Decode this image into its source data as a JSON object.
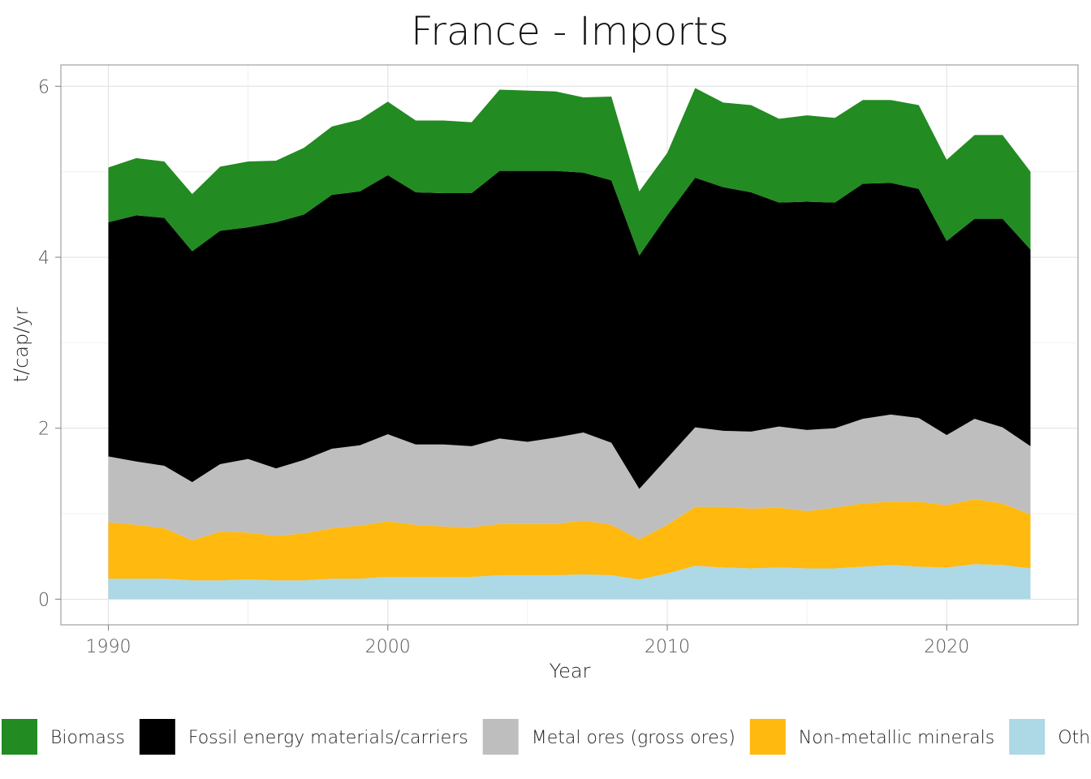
{
  "chart_data": {
    "type": "area",
    "stacked": true,
    "title": "France  -  Imports",
    "xlabel": "Year",
    "ylabel": "t/cap/yr",
    "xlim": [
      1988.3,
      2024.7
    ],
    "ylim": [
      -0.3,
      6.25
    ],
    "xticks": [
      1990,
      2000,
      2010,
      2020
    ],
    "yticks": [
      0,
      2,
      4,
      6
    ],
    "grid": true,
    "legend_position": "bottom",
    "x": [
      1990,
      1991,
      1992,
      1993,
      1994,
      1995,
      1996,
      1997,
      1998,
      1999,
      2000,
      2001,
      2002,
      2003,
      2004,
      2005,
      2006,
      2007,
      2008,
      2009,
      2010,
      2011,
      2012,
      2013,
      2014,
      2015,
      2016,
      2017,
      2018,
      2019,
      2020,
      2021,
      2022,
      2023
    ],
    "series": [
      {
        "name": "Other products",
        "color": "#add8e6",
        "values": [
          0.24,
          0.24,
          0.24,
          0.22,
          0.22,
          0.23,
          0.22,
          0.22,
          0.24,
          0.24,
          0.26,
          0.26,
          0.26,
          0.26,
          0.28,
          0.28,
          0.28,
          0.29,
          0.28,
          0.23,
          0.3,
          0.39,
          0.37,
          0.36,
          0.37,
          0.36,
          0.36,
          0.38,
          0.4,
          0.38,
          0.37,
          0.41,
          0.4,
          0.36
        ]
      },
      {
        "name": "Non-metallic minerals",
        "color": "#ffb90f",
        "values": [
          0.66,
          0.63,
          0.59,
          0.47,
          0.57,
          0.55,
          0.52,
          0.55,
          0.59,
          0.62,
          0.65,
          0.61,
          0.59,
          0.58,
          0.6,
          0.6,
          0.6,
          0.63,
          0.59,
          0.47,
          0.57,
          0.69,
          0.71,
          0.7,
          0.7,
          0.67,
          0.71,
          0.74,
          0.74,
          0.76,
          0.73,
          0.76,
          0.72,
          0.63
        ]
      },
      {
        "name": "Metal ores (gross ores)",
        "color": "#bebebe",
        "values": [
          0.77,
          0.74,
          0.73,
          0.68,
          0.79,
          0.86,
          0.79,
          0.86,
          0.93,
          0.94,
          1.02,
          0.94,
          0.96,
          0.95,
          1.0,
          0.96,
          1.01,
          1.03,
          0.96,
          0.59,
          0.78,
          0.93,
          0.89,
          0.9,
          0.95,
          0.95,
          0.93,
          0.99,
          1.02,
          0.98,
          0.82,
          0.94,
          0.89,
          0.8
        ]
      },
      {
        "name": "Fossil energy materials/carriers",
        "color": "#000000",
        "values": [
          2.74,
          2.88,
          2.9,
          2.7,
          2.73,
          2.71,
          2.88,
          2.87,
          2.97,
          2.97,
          3.03,
          2.95,
          2.94,
          2.96,
          3.13,
          3.17,
          3.12,
          3.04,
          3.07,
          2.73,
          2.84,
          2.92,
          2.85,
          2.8,
          2.62,
          2.67,
          2.64,
          2.75,
          2.71,
          2.68,
          2.27,
          2.34,
          2.44,
          2.3
        ]
      },
      {
        "name": "Biomass",
        "color": "#228b22",
        "values": [
          0.64,
          0.67,
          0.66,
          0.67,
          0.75,
          0.77,
          0.72,
          0.78,
          0.8,
          0.84,
          0.86,
          0.84,
          0.85,
          0.83,
          0.95,
          0.94,
          0.93,
          0.88,
          0.98,
          0.75,
          0.73,
          1.05,
          0.99,
          1.02,
          0.98,
          1.01,
          0.99,
          0.98,
          0.97,
          0.98,
          0.95,
          0.98,
          0.98,
          0.91
        ]
      }
    ]
  },
  "legend_entries": [
    {
      "label": "Biomass",
      "color": "#228b22"
    },
    {
      "label": "Fossil energy materials/carriers",
      "color": "#000000"
    },
    {
      "label": "Metal ores (gross ores)",
      "color": "#bebebe"
    },
    {
      "label": "Non-metallic minerals",
      "color": "#ffb90f"
    },
    {
      "label": "Other products",
      "color": "#add8e6"
    }
  ]
}
